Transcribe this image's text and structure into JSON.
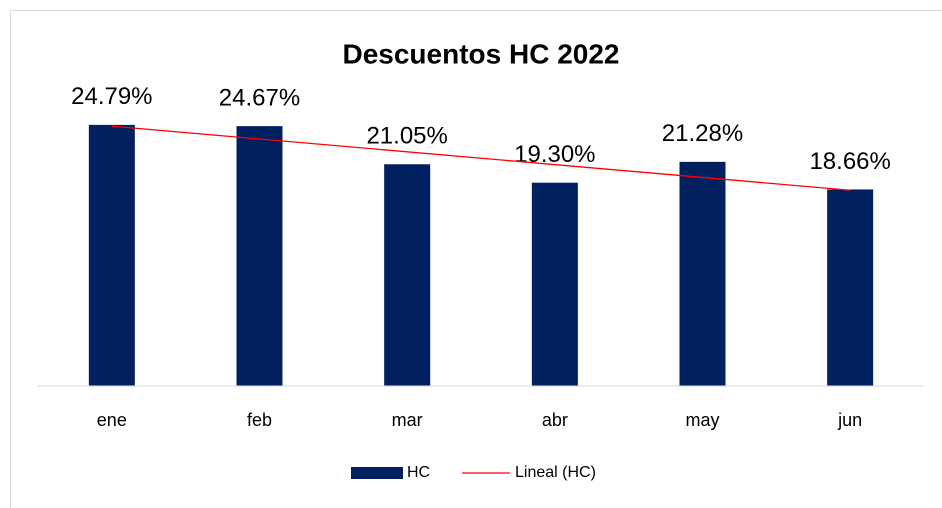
{
  "chart_data": {
    "type": "bar",
    "title": "Descuentos HC 2022",
    "categories": [
      "ene",
      "feb",
      "mar",
      "abr",
      "may",
      "jun"
    ],
    "series": [
      {
        "name": "HC",
        "color": "#002060",
        "values": [
          24.79,
          24.67,
          21.05,
          19.3,
          21.28,
          18.66
        ],
        "value_labels": [
          "24.79%",
          "24.67%",
          "21.05%",
          "19.30%",
          "21.28%",
          "18.66%"
        ]
      }
    ],
    "trendline": {
      "name": "Lineal (HC)",
      "color": "#ff0000"
    },
    "ylim": [
      0,
      30
    ],
    "yticks": [],
    "grid": false
  }
}
